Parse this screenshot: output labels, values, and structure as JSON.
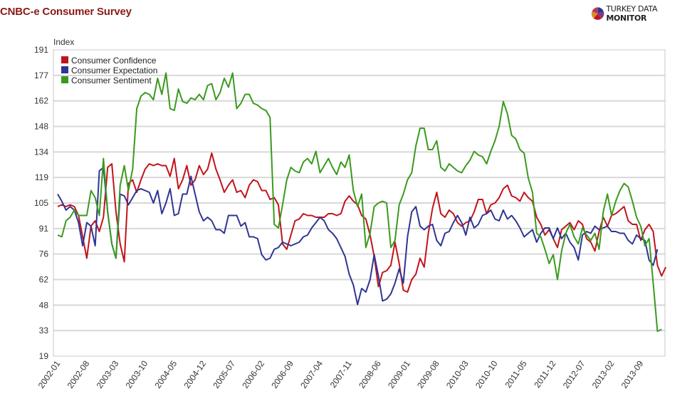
{
  "header": {
    "title": "CNBC-e Consumer Survey",
    "brand": {
      "name_part1": "TURKEY DATA ",
      "name_part2": "MONITOR",
      "icon": "pie-logo-icon"
    }
  },
  "chart_data": {
    "type": "line",
    "title": "CNBC-e Consumer Survey",
    "xlabel": "",
    "ylabel": "Index",
    "ylim": [
      19,
      191
    ],
    "yticks": [
      191,
      177,
      162,
      148,
      134,
      119,
      105,
      91,
      76,
      62,
      48,
      33,
      19
    ],
    "xtick_labels": [
      "2002-01",
      "2002-08",
      "2003-03",
      "2003-10",
      "2004-05",
      "2004-12",
      "2005-07",
      "2006-02",
      "2006-09",
      "2007-04",
      "2007-11",
      "2008-06",
      "2009-01",
      "2009-08",
      "2010-03",
      "2010-10",
      "2011-05",
      "2011-12",
      "2012-07",
      "2013-02",
      "2013-09"
    ],
    "x_start": "2002-01",
    "x_frequency": "monthly",
    "grid": true,
    "legend_position": "top-left inside",
    "series": [
      {
        "name": "Consumer Confidence",
        "color": "#c0141b",
        "values": [
          103,
          104,
          103,
          104,
          103,
          98,
          86,
          74,
          92,
          95,
          89,
          97,
          125,
          127,
          100,
          82,
          72,
          116,
          118,
          111,
          118,
          124,
          127,
          126,
          127,
          126,
          126,
          120,
          130,
          113,
          118,
          126,
          115,
          118,
          126,
          121,
          124,
          133,
          124,
          118,
          111,
          115,
          118,
          111,
          112,
          108,
          115,
          118,
          117,
          112,
          112,
          107,
          108,
          104,
          82,
          79,
          87,
          95,
          96,
          99,
          98,
          98,
          97,
          97,
          97,
          99,
          99,
          98,
          99,
          106,
          109,
          106,
          104,
          98,
          96,
          87,
          75,
          58,
          66,
          67,
          70,
          83,
          71,
          56,
          55,
          62,
          65,
          74,
          69,
          88,
          102,
          111,
          99,
          97,
          101,
          99,
          94,
          92,
          94,
          95,
          100,
          107,
          107,
          99,
          104,
          105,
          108,
          113,
          115,
          109,
          108,
          106,
          111,
          108,
          106,
          97,
          93,
          87,
          90,
          85,
          80,
          90,
          92,
          94,
          90,
          95,
          93,
          85,
          83,
          78,
          89,
          97,
          92,
          98,
          99,
          101,
          103,
          95,
          93,
          93,
          84,
          90,
          93,
          89,
          70,
          64,
          69
        ]
      },
      {
        "name": "Consumer Expectation",
        "color": "#2f3593",
        "values": [
          110,
          106,
          101,
          103,
          101,
          94,
          81,
          94,
          92,
          81,
          123,
          125,
          100,
          82,
          74,
          110,
          109,
          104,
          108,
          112,
          113,
          112,
          111,
          105,
          112,
          99,
          105,
          113,
          98,
          99,
          110,
          110,
          120,
          110,
          100,
          95,
          97,
          95,
          90,
          90,
          88,
          98,
          98,
          98,
          92,
          94,
          86,
          86,
          85,
          76,
          73,
          74,
          79,
          80,
          83,
          82,
          81,
          82,
          83,
          86,
          87,
          91,
          94,
          97,
          95,
          90,
          88,
          85,
          80,
          75,
          65,
          59,
          48,
          57,
          55,
          62,
          76,
          64,
          50,
          51,
          54,
          60,
          68,
          60,
          86,
          100,
          103,
          92,
          90,
          92,
          93,
          84,
          81,
          88,
          89,
          94,
          98,
          94,
          87,
          97,
          91,
          93,
          98,
          99,
          101,
          96,
          95,
          101,
          96,
          98,
          95,
          91,
          86,
          88,
          90,
          83,
          88,
          91,
          91,
          85,
          91,
          85,
          88,
          83,
          80,
          73,
          87,
          89,
          88,
          92,
          90,
          91,
          92,
          89,
          89,
          88,
          88,
          84,
          82,
          87,
          85,
          84,
          73,
          70,
          79
        ]
      },
      {
        "name": "Consumer Sentiment",
        "color": "#3a9a1e",
        "values": [
          87,
          86,
          95,
          97,
          101,
          98,
          98,
          98,
          112,
          108,
          98,
          130,
          100,
          82,
          74,
          115,
          126,
          112,
          124,
          158,
          165,
          167,
          166,
          163,
          175,
          166,
          178,
          158,
          157,
          169,
          162,
          161,
          164,
          163,
          166,
          163,
          171,
          172,
          163,
          167,
          175,
          170,
          178,
          158,
          161,
          166,
          166,
          161,
          160,
          158,
          157,
          153,
          93,
          91,
          104,
          118,
          125,
          123,
          122,
          128,
          130,
          127,
          134,
          122,
          126,
          130,
          125,
          121,
          128,
          125,
          132,
          112,
          103,
          110,
          80,
          88,
          103,
          105,
          106,
          105,
          80,
          84,
          104,
          110,
          118,
          122,
          137,
          147,
          147,
          135,
          135,
          140,
          125,
          123,
          127,
          125,
          123,
          122,
          126,
          129,
          134,
          132,
          131,
          127,
          134,
          140,
          148,
          162,
          155,
          143,
          141,
          135,
          133,
          119,
          111,
          88,
          86,
          79,
          71,
          76,
          62,
          78,
          88,
          93,
          86,
          82,
          91,
          87,
          84,
          88,
          79,
          100,
          110,
          98,
          106,
          112,
          116,
          114,
          106,
          97,
          92,
          81,
          85,
          60,
          33,
          34
        ]
      }
    ]
  },
  "chart": {
    "y_axis_title": "Index",
    "legend": [
      {
        "label": "Consumer Confidence",
        "color": "#c0141b"
      },
      {
        "label": "Consumer Expectation",
        "color": "#2f3593"
      },
      {
        "label": "Consumer Sentiment",
        "color": "#3a9a1e"
      }
    ]
  }
}
